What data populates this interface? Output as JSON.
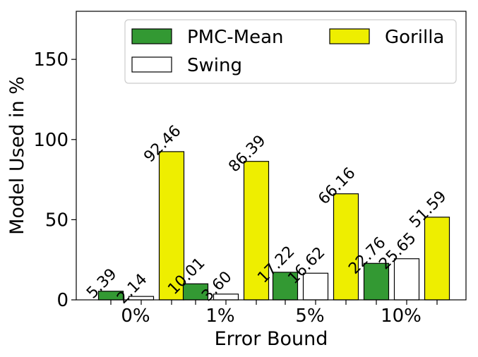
{
  "chart_data": {
    "type": "bar",
    "xlabel": "Error Bound",
    "ylabel": "Model Used in %",
    "ylim": [
      0,
      180
    ],
    "yticks": [
      0,
      50,
      100,
      150
    ],
    "categories": [
      "0%",
      "1%",
      "5%",
      "10%"
    ],
    "legend_placement": "top-right",
    "grid": false,
    "series": [
      {
        "name": "PMC-Mean",
        "color": "#339933",
        "values": [
          5.39,
          10.01,
          17.22,
          22.76
        ],
        "labels": [
          "5.39",
          "10.01",
          "17.22",
          "22.76"
        ]
      },
      {
        "name": "Swing",
        "color": "#ffffff",
        "values": [
          2.14,
          3.6,
          16.62,
          25.65
        ],
        "labels": [
          "2.14",
          "3.60",
          "16.62",
          "25.65"
        ]
      },
      {
        "name": "Gorilla",
        "color": "#eeee00",
        "values": [
          92.46,
          86.39,
          66.16,
          51.59
        ],
        "labels": [
          "92.46",
          "86.39",
          "66.16",
          "51.59"
        ]
      }
    ]
  }
}
